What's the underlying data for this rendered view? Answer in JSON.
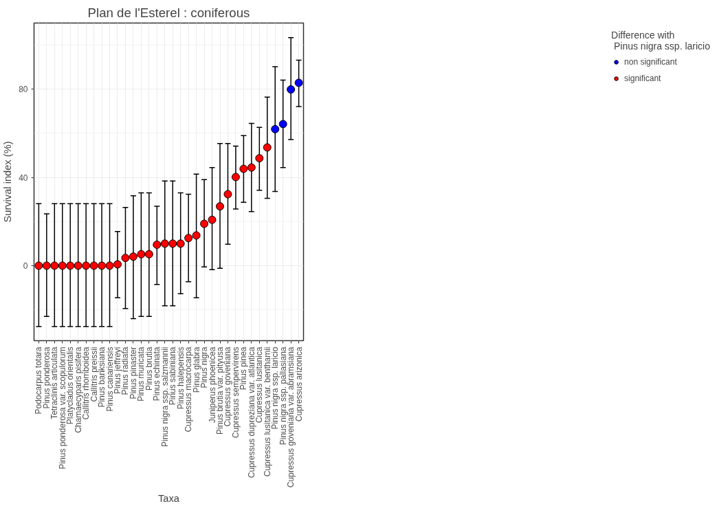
{
  "chart_data": {
    "type": "scatter",
    "title": "Plan de l'Esterel : coniferous",
    "xlabel": "Taxa",
    "ylabel": "Survival index (%)",
    "legend_title": "Difference with\n Pinus nigra ssp. laricio",
    "categories": [
      "Podocarpus totara",
      "Pinus ponderosa",
      "Tetraclinis articulata",
      "Pinus ponderosa var. scopulorum",
      "Platycladus orientalis",
      "Chamaecyparis pisifera",
      "Callitris rhomboidea",
      "Callitris preissii",
      "Pinus banksiana",
      "Pinus canariensis",
      "Pinus jeffreyi",
      "Pinus radiata",
      "Pinus pinaster",
      "Pinus muricata",
      "Pinus brutia",
      "Pinus echinata",
      "Pinus nigra ssp. salzmannii",
      "Pinus sabiniana",
      "Pinus halepensis",
      "Cupressus macrocarpa",
      "Pinus glabra",
      "Pinus nigra",
      "Juniperus phoenicea",
      "Pinus brutia var. pityusa",
      "Cupressus goveniana",
      "Cupressus sempervirens",
      "Pinus pinea",
      "Cupressus dupreziana var. atlantica",
      "Cupressus lusitanica",
      "Cupressus lusitanica var. benthamii",
      "Pinus nigra ssp. laricio",
      "Pinus nigra ssp. pallasiana",
      "Cupressus goveniana var. abramsiana",
      "Cupressus arizonica"
    ],
    "series": [
      {
        "name": "non significant",
        "color": "#0000ff",
        "values": [
          null,
          null,
          null,
          null,
          null,
          null,
          null,
          null,
          null,
          null,
          null,
          null,
          null,
          null,
          null,
          null,
          null,
          null,
          null,
          null,
          null,
          null,
          null,
          null,
          null,
          null,
          null,
          null,
          null,
          null,
          61.9,
          64.2,
          79.9,
          82.9
        ],
        "errors": [
          null,
          null,
          null,
          null,
          null,
          null,
          null,
          null,
          null,
          null,
          null,
          null,
          null,
          null,
          null,
          null,
          null,
          null,
          null,
          null,
          null,
          null,
          null,
          null,
          null,
          null,
          null,
          null,
          null,
          null,
          [
            33.6,
            90.2
          ],
          [
            44.5,
            84.1
          ],
          [
            57.2,
            103.4
          ],
          [
            72.1,
            93.2
          ]
        ]
      },
      {
        "name": "significant",
        "color": "#ff0000",
        "values": [
          0,
          0,
          0,
          0,
          0,
          0,
          0,
          0,
          0,
          0,
          0.6,
          3.5,
          4.1,
          5.2,
          5.2,
          9.5,
          10.0,
          10.0,
          10.0,
          12.5,
          13.7,
          19.0,
          20.8,
          26.9,
          32.4,
          40.2,
          43.9,
          44.5,
          48.7,
          53.6,
          null,
          null,
          null,
          null
        ],
        "errors": [
          [
            -27.6,
            28.1
          ],
          [
            -23,
            23.5
          ],
          [
            -27.6,
            28.1
          ],
          [
            -27.6,
            28.1
          ],
          [
            -27.6,
            28.1
          ],
          [
            -27.6,
            28.1
          ],
          [
            -27.6,
            28.1
          ],
          [
            -27.6,
            28.1
          ],
          [
            -27.6,
            28.1
          ],
          [
            -27.6,
            28.1
          ],
          [
            -14.5,
            15.5
          ],
          [
            -19.4,
            26.4
          ],
          [
            -24,
            31.7
          ],
          [
            -23,
            33
          ],
          [
            -23,
            33
          ],
          [
            -8.5,
            26.9
          ],
          [
            -18.2,
            38.4
          ],
          [
            -18.2,
            38.4
          ],
          [
            -12.7,
            33
          ],
          [
            -7.3,
            32.4
          ],
          [
            -14.5,
            41.5
          ],
          [
            -0.6,
            39.0
          ],
          [
            -1.8,
            44.5
          ],
          [
            -1.2,
            55.4
          ],
          [
            9.7,
            55.4
          ],
          [
            25.7,
            54.2
          ],
          [
            28.7,
            59.0
          ],
          [
            24.5,
            64.5
          ],
          [
            34.2,
            62.7
          ],
          [
            30.5,
            76.4
          ],
          null,
          null,
          null,
          null
        ]
      }
    ],
    "ylim": [
      -34,
      110
    ],
    "yticks": [
      0,
      40,
      80
    ],
    "grid": true,
    "legend": "right",
    "marker": "circle"
  }
}
